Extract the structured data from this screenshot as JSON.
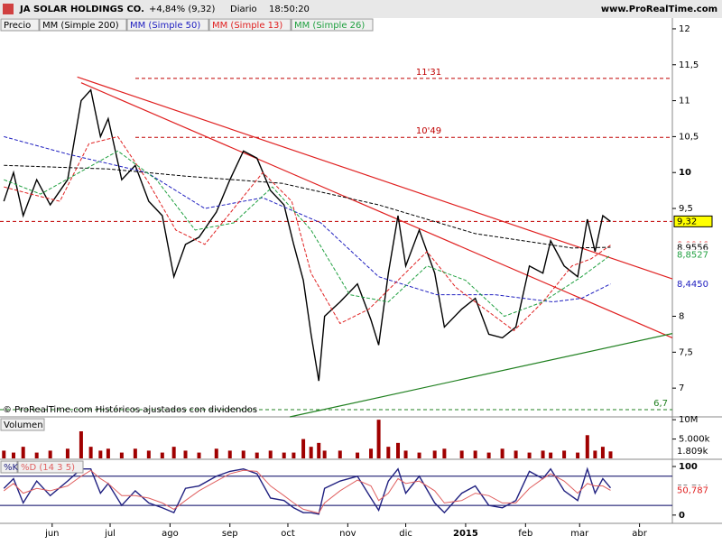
{
  "header": {
    "symbol": "JA SOLAR HOLDINGS CO.",
    "change": "+4,84% (9,32)",
    "period": "Diario",
    "time": "18:50:20",
    "site": "www.ProRealTime.com"
  },
  "chart_data": [
    {
      "type": "line",
      "panel": "price",
      "xlim": [
        4,
        352
      ],
      "ylim": [
        6.6,
        12.15
      ],
      "yticks": [
        12,
        {
          "value": 11.5,
          "label": "11,5"
        },
        11,
        {
          "value": 10.5,
          "label": "10,5"
        },
        10,
        {
          "value": 9.5,
          "label": "9,5"
        },
        8,
        {
          "value": 7.5,
          "label": "7,5"
        },
        7
      ],
      "annotation": "© ProRealTime.com  Históricos ajustados con dividendos",
      "series": [
        {
          "name": "Precio",
          "color": "#000000",
          "x": [
            6,
            11,
            16,
            23,
            30,
            39,
            46,
            51,
            56,
            60,
            67,
            74,
            81,
            88,
            94,
            100,
            107,
            116,
            123,
            130,
            137,
            144,
            151,
            156,
            161,
            165,
            169,
            172,
            180,
            189,
            196,
            200,
            205,
            210,
            214,
            221,
            229,
            234,
            243,
            250,
            257,
            264,
            271,
            278,
            285,
            289,
            296,
            303,
            308,
            312,
            316,
            320
          ],
          "values": [
            9.6,
            10.0,
            9.4,
            9.9,
            9.55,
            9.9,
            11.0,
            11.15,
            10.5,
            10.75,
            9.9,
            10.1,
            9.6,
            9.4,
            8.55,
            9.0,
            9.1,
            9.45,
            9.9,
            10.3,
            10.2,
            9.75,
            9.55,
            9.0,
            8.5,
            7.75,
            7.1,
            8.0,
            8.2,
            8.45,
            7.95,
            7.6,
            8.6,
            9.4,
            8.7,
            9.2,
            8.6,
            7.85,
            8.1,
            8.25,
            7.75,
            7.7,
            7.85,
            8.7,
            8.6,
            9.05,
            8.7,
            8.55,
            9.35,
            8.9,
            9.4,
            9.32
          ]
        },
        {
          "name": "MM (Simple 200)",
          "color": "#000000",
          "x": [
            6,
            60,
            100,
            150,
            200,
            250,
            300,
            320
          ],
          "values": [
            10.1,
            10.05,
            9.95,
            9.85,
            9.55,
            9.15,
            8.95,
            8.96
          ]
        },
        {
          "name": "MM (Simple 50)",
          "color": "#2020c0",
          "x": [
            6,
            40,
            80,
            110,
            140,
            170,
            200,
            230,
            260,
            290,
            305,
            320
          ],
          "values": [
            10.5,
            10.25,
            10.0,
            9.5,
            9.65,
            9.3,
            8.55,
            8.3,
            8.3,
            8.2,
            8.25,
            8.45
          ]
        },
        {
          "name": "MM (Simple 13)",
          "color": "#e02020",
          "x": [
            6,
            20,
            35,
            50,
            65,
            80,
            95,
            110,
            125,
            140,
            155,
            165,
            180,
            195,
            210,
            225,
            240,
            255,
            270,
            285,
            300,
            310,
            320
          ],
          "values": [
            9.8,
            9.7,
            9.6,
            10.4,
            10.5,
            9.9,
            9.2,
            9.0,
            9.5,
            10.0,
            9.6,
            8.6,
            7.9,
            8.1,
            8.5,
            8.9,
            8.4,
            8.1,
            7.8,
            8.2,
            8.7,
            8.8,
            8.99
          ]
        },
        {
          "name": "MM (Simple 26)",
          "color": "#20a040",
          "x": [
            6,
            25,
            45,
            65,
            85,
            105,
            125,
            145,
            165,
            185,
            205,
            225,
            245,
            265,
            285,
            305,
            320
          ],
          "values": [
            9.9,
            9.7,
            10.0,
            10.3,
            9.9,
            9.2,
            9.3,
            9.8,
            9.2,
            8.3,
            8.2,
            8.7,
            8.5,
            8.0,
            8.2,
            8.55,
            8.85
          ]
        }
      ],
      "trendlines": [
        {
          "color": "#e02020",
          "x": [
            44,
            352
          ],
          "values": [
            11.33,
            8.52
          ]
        },
        {
          "color": "#e02020",
          "x": [
            46,
            352
          ],
          "values": [
            11.25,
            7.7
          ]
        },
        {
          "color": "#208020",
          "x": [
            154,
            352
          ],
          "values": [
            6.6,
            7.76
          ]
        }
      ],
      "levels": [
        {
          "value": 11.31,
          "label": "11'31",
          "color": "#c00000"
        },
        {
          "value": 10.49,
          "label": "10'49",
          "color": "#c00000"
        },
        {
          "value": 9.32,
          "color": "#c00000"
        },
        {
          "value": 6.7,
          "label": "6,7",
          "color": "#208020"
        }
      ],
      "badges": [
        {
          "value": 9.32,
          "label": "9,32",
          "color": "#000000",
          "bg": "#ffff00"
        },
        {
          "value": 8.9946,
          "label": "8,9946",
          "color": "#e02020"
        },
        {
          "value": 8.9556,
          "label": "8,9556",
          "color": "#000000"
        },
        {
          "value": 8.8527,
          "label": "8,8527",
          "color": "#20a040"
        },
        {
          "value": 8.445,
          "label": "8,4450",
          "color": "#2020c0"
        }
      ]
    },
    {
      "type": "bar",
      "panel": "volume",
      "title": "Volumen",
      "color": "#a00000",
      "xlim": [
        4,
        352
      ],
      "ylim": [
        0,
        10.5
      ],
      "x": [
        6,
        11,
        16,
        23,
        30,
        39,
        46,
        51,
        56,
        60,
        67,
        74,
        81,
        88,
        94,
        100,
        107,
        116,
        123,
        130,
        137,
        144,
        151,
        156,
        161,
        165,
        169,
        172,
        180,
        189,
        196,
        200,
        205,
        210,
        214,
        221,
        229,
        234,
        243,
        250,
        257,
        264,
        271,
        278,
        285,
        289,
        296,
        303,
        308,
        312,
        316,
        320
      ],
      "values": [
        2,
        1.5,
        3,
        1.5,
        2,
        2.5,
        7,
        3,
        2,
        2.5,
        1.5,
        2.5,
        2,
        1.5,
        3,
        2,
        1.5,
        2.5,
        2,
        2,
        1.5,
        2,
        1.5,
        1.5,
        5,
        3,
        4,
        2,
        2,
        1.5,
        2.5,
        10,
        3,
        4,
        2,
        1.5,
        2,
        2.5,
        2,
        2,
        1.5,
        2.5,
        2,
        1.5,
        2,
        1.5,
        2,
        1.5,
        6,
        2,
        3,
        1.8
      ],
      "yticks": [
        {
          "value": 10,
          "label": "10M"
        },
        {
          "value": 5,
          "label": "5.000k"
        }
      ],
      "badges": [
        {
          "value": 1.809,
          "label": "1.809k",
          "color": "#000000"
        }
      ]
    },
    {
      "type": "line",
      "panel": "stochastic",
      "xlim": [
        4,
        352
      ],
      "ylim": [
        -17,
        113
      ],
      "yticks": [
        100,
        0
      ],
      "levels": [
        {
          "value": 80,
          "color": "#000060"
        },
        {
          "value": 20,
          "color": "#000060"
        }
      ],
      "xticks": [
        {
          "value": 31,
          "label": "jun"
        },
        {
          "value": 61,
          "label": "jul"
        },
        {
          "value": 92,
          "label": "ago"
        },
        {
          "value": 123,
          "label": "sep"
        },
        {
          "value": 153,
          "label": "oct"
        },
        {
          "value": 184,
          "label": "nov"
        },
        {
          "value": 214,
          "label": "dic"
        },
        {
          "value": 245,
          "label": "2015"
        },
        {
          "value": 276,
          "label": "feb"
        },
        {
          "value": 304,
          "label": "mar"
        },
        {
          "value": 335,
          "label": "abr"
        }
      ],
      "series": [
        {
          "name": "%K",
          "color": "#202080",
          "x": [
            6,
            11,
            16,
            23,
            30,
            39,
            46,
            51,
            56,
            60,
            67,
            74,
            81,
            88,
            94,
            100,
            107,
            116,
            123,
            130,
            137,
            144,
            151,
            156,
            161,
            165,
            169,
            172,
            180,
            189,
            196,
            200,
            205,
            210,
            214,
            221,
            229,
            234,
            243,
            250,
            257,
            264,
            271,
            278,
            285,
            289,
            296,
            303,
            308,
            312,
            316,
            320
          ],
          "values": [
            55,
            75,
            25,
            70,
            40,
            70,
            95,
            95,
            45,
            65,
            20,
            50,
            25,
            15,
            5,
            55,
            60,
            80,
            90,
            95,
            85,
            35,
            30,
            15,
            5,
            5,
            2,
            55,
            70,
            80,
            35,
            10,
            70,
            95,
            45,
            80,
            25,
            5,
            45,
            60,
            20,
            15,
            30,
            90,
            75,
            95,
            50,
            30,
            95,
            45,
            75,
            56
          ]
        },
        {
          "name": "%D (14 3 5)",
          "color": "#e06060",
          "x": [
            6,
            11,
            16,
            23,
            30,
            39,
            46,
            51,
            56,
            60,
            67,
            74,
            81,
            88,
            94,
            100,
            107,
            116,
            123,
            130,
            137,
            144,
            151,
            156,
            161,
            165,
            169,
            172,
            180,
            189,
            196,
            200,
            205,
            210,
            214,
            221,
            229,
            234,
            243,
            250,
            257,
            264,
            271,
            278,
            285,
            289,
            296,
            303,
            308,
            312,
            316,
            320
          ],
          "values": [
            50,
            65,
            45,
            55,
            50,
            60,
            80,
            92,
            75,
            65,
            40,
            40,
            35,
            25,
            12,
            30,
            50,
            70,
            85,
            92,
            90,
            60,
            40,
            25,
            12,
            8,
            4,
            25,
            50,
            72,
            60,
            30,
            45,
            75,
            65,
            70,
            50,
            25,
            30,
            45,
            40,
            25,
            25,
            55,
            75,
            85,
            70,
            45,
            65,
            60,
            60,
            51
          ]
        }
      ],
      "badges": [
        {
          "value": 55.714,
          "label": "55,714",
          "color": "#000000"
        },
        {
          "value": 50.787,
          "label": "50,787",
          "color": "#e02020"
        }
      ]
    }
  ]
}
